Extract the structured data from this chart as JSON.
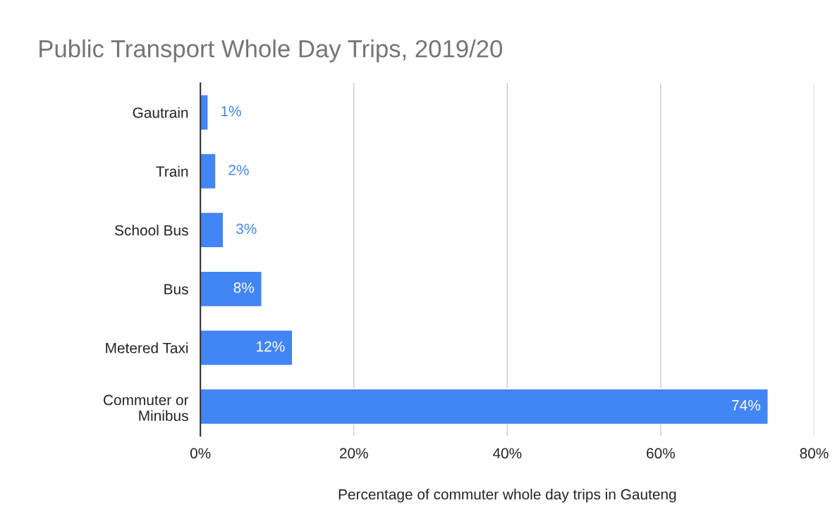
{
  "chart_data": {
    "type": "bar",
    "orientation": "horizontal",
    "title": "Public Transport Whole Day Trips, 2019/20",
    "xlabel": "Percentage of commuter whole day trips in Gauteng",
    "categories": [
      "Gautrain",
      "Train",
      "School Bus",
      "Bus",
      "Metered Taxi",
      "Commuter or\nMinibus"
    ],
    "values": [
      1,
      2,
      3,
      8,
      12,
      74
    ],
    "value_labels": [
      "1%",
      "2%",
      "3%",
      "8%",
      "12%",
      "74%"
    ],
    "color": "#4285f4",
    "xlim": [
      0,
      80
    ],
    "xticks": [
      {
        "value": 0,
        "label": "0%"
      },
      {
        "value": 20,
        "label": "20%"
      },
      {
        "value": 40,
        "label": "40%"
      },
      {
        "value": 60,
        "label": "60%"
      },
      {
        "value": 80,
        "label": "80%"
      }
    ],
    "grid": "x"
  }
}
